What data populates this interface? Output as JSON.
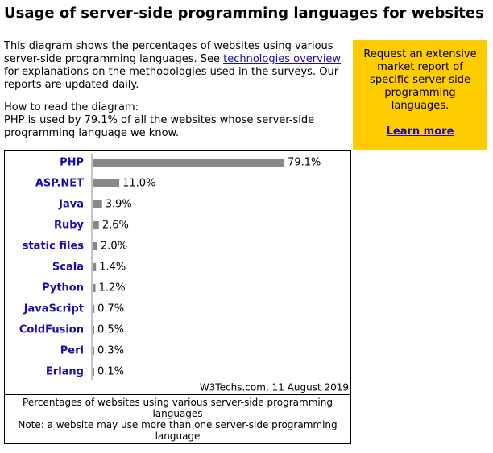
{
  "header": {
    "title": "Usage of server-side programming languages for websites"
  },
  "intro": {
    "before": "This diagram shows the percentages of websites using various server-side programming languages. See",
    "link": "technologies overview",
    "after": "for explanations on the methodologies used in the surveys. Our reports are updated daily."
  },
  "howto": {
    "heading": "How to read the diagram:",
    "text": "PHP is used by 79.1% of all the websites whose server-side programming language we know."
  },
  "sidebar": {
    "text": "Request an extensive market report of specific server-side programming languages.",
    "link": "Learn more"
  },
  "chart_data": {
    "type": "bar",
    "orientation": "horizontal",
    "color": "#888888",
    "categories": [
      "PHP",
      "ASP.NET",
      "Java",
      "Ruby",
      "static files",
      "Scala",
      "Python",
      "JavaScript",
      "ColdFusion",
      "Perl",
      "Erlang"
    ],
    "values": [
      79.1,
      11.0,
      3.9,
      2.6,
      2.0,
      1.4,
      1.2,
      0.7,
      0.5,
      0.3,
      0.1
    ],
    "value_labels": [
      "79.1%",
      "11.0%",
      "3.9%",
      "2.6%",
      "2.0%",
      "1.4%",
      "1.2%",
      "0.7%",
      "0.5%",
      "0.3%",
      "0.1%"
    ],
    "source": "W3Techs.com, 11 August 2019"
  },
  "caption": {
    "line1": "Percentages of websites using various server-side programming languages",
    "line2": "Note: a website may use more than one server-side programming language"
  }
}
